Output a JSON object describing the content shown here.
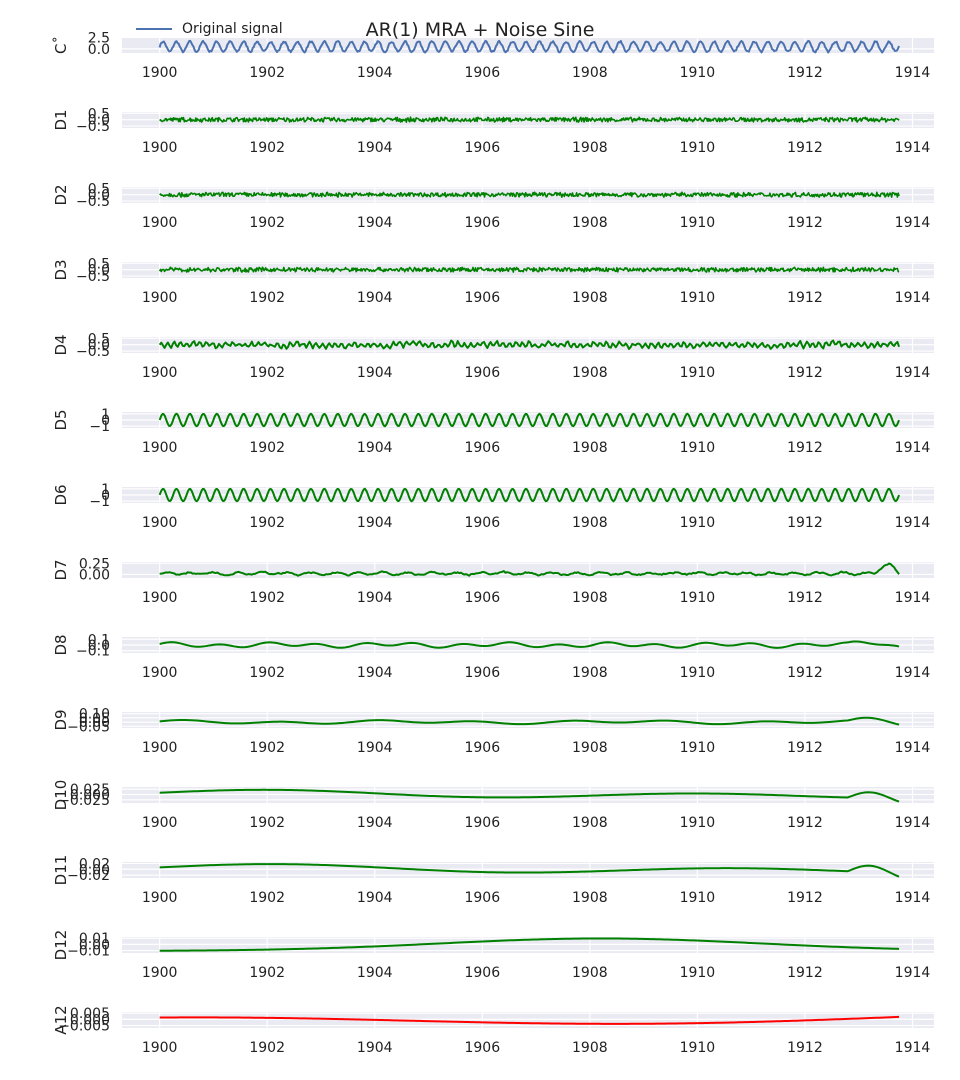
{
  "chart_data": {
    "type": "line",
    "title": "AR(1) MRA + Noise Sine",
    "legend": {
      "entries": [
        "Original signal"
      ],
      "placement": "top-left"
    },
    "x_range": [
      1899.3,
      1914.4
    ],
    "x_ticks": [
      "1900",
      "1902",
      "1904",
      "1906",
      "1908",
      "1910",
      "1912",
      "1914"
    ],
    "grid": true,
    "colors": {
      "original": "#4c72b0",
      "detail": "#008000",
      "approx": "#ff0000",
      "background": "#eaeaf2"
    },
    "panels": [
      {
        "ylabel": "C˚",
        "color": "#4c72b0",
        "ylim": [
          -0.9,
          2.6
        ],
        "yticks": [
          {
            "v": 2.5,
            "t": "2.5"
          },
          {
            "v": 0.0,
            "t": "0.0"
          }
        ],
        "signal": {
          "kind": "sine",
          "amp": 1.1,
          "period": 0.25,
          "offset": 0.5,
          "noise": 0.2
        }
      },
      {
        "ylabel": "D1",
        "color": "#008000",
        "ylim": [
          -0.65,
          0.6
        ],
        "yticks": [
          {
            "v": 0.5,
            "t": "0.5"
          },
          {
            "v": 0.0,
            "t": "0.0"
          },
          {
            "v": -0.5,
            "t": "−0.5"
          }
        ],
        "signal": {
          "kind": "noise",
          "amp": 0.2
        }
      },
      {
        "ylabel": "D2",
        "color": "#008000",
        "ylim": [
          -0.65,
          0.6
        ],
        "yticks": [
          {
            "v": 0.5,
            "t": "0.5"
          },
          {
            "v": 0.0,
            "t": "0.0"
          },
          {
            "v": -0.5,
            "t": "−0.5"
          }
        ],
        "signal": {
          "kind": "noise",
          "amp": 0.2
        }
      },
      {
        "ylabel": "D3",
        "color": "#008000",
        "ylim": [
          -0.65,
          0.6
        ],
        "yticks": [
          {
            "v": 0.5,
            "t": "0.5"
          },
          {
            "v": 0.0,
            "t": "0.0"
          },
          {
            "v": -0.5,
            "t": "−0.5"
          }
        ],
        "signal": {
          "kind": "noise",
          "amp": 0.2
        }
      },
      {
        "ylabel": "D4",
        "color": "#008000",
        "ylim": [
          -0.65,
          0.6
        ],
        "yticks": [
          {
            "v": 0.5,
            "t": "0.5"
          },
          {
            "v": 0.0,
            "t": "0.0"
          },
          {
            "v": -0.5,
            "t": "−0.5"
          }
        ],
        "signal": {
          "kind": "wavy",
          "amp": 0.22,
          "period": 0.12
        }
      },
      {
        "ylabel": "D5",
        "color": "#008000",
        "ylim": [
          -1.3,
          1.3
        ],
        "yticks": [
          {
            "v": 1,
            "t": "1"
          },
          {
            "v": 0,
            "t": "0"
          },
          {
            "v": -1,
            "t": "−1"
          }
        ],
        "signal": {
          "kind": "sine",
          "amp": 1.0,
          "period": 0.25,
          "offset": 0,
          "noise": 0.02
        }
      },
      {
        "ylabel": "D6",
        "color": "#008000",
        "ylim": [
          -1.3,
          1.3
        ],
        "yticks": [
          {
            "v": 1,
            "t": "1"
          },
          {
            "v": 0,
            "t": "0"
          },
          {
            "v": -1,
            "t": "−1"
          }
        ],
        "signal": {
          "kind": "sine",
          "amp": 1.0,
          "period": 0.25,
          "offset": 0,
          "noise": 0.02
        }
      },
      {
        "ylabel": "D7",
        "color": "#008000",
        "ylim": [
          -0.08,
          0.28
        ],
        "yticks": [
          {
            "v": 0.25,
            "t": "0.25"
          },
          {
            "v": 0.0,
            "t": "0.00"
          }
        ],
        "signal": {
          "kind": "wavy",
          "amp": 0.03,
          "period": 0.45,
          "base": 0.02
        }
      },
      {
        "ylabel": "D8",
        "color": "#008000",
        "ylim": [
          -0.14,
          0.14
        ],
        "yticks": [
          {
            "v": 0.1,
            "t": "0.1"
          },
          {
            "v": 0.0,
            "t": "0.0"
          },
          {
            "v": -0.1,
            "t": "−0.1"
          }
        ],
        "signal": {
          "kind": "smooth",
          "amp": 0.05,
          "period": 0.9
        }
      },
      {
        "ylabel": "D9",
        "color": "#008000",
        "ylim": [
          -0.07,
          0.12
        ],
        "yticks": [
          {
            "v": 0.1,
            "t": "0.10"
          },
          {
            "v": 0.05,
            "t": "0.05"
          },
          {
            "v": 0.0,
            "t": "0.00"
          },
          {
            "v": -0.05,
            "t": "−0.05"
          }
        ],
        "signal": {
          "kind": "smooth",
          "amp": 0.025,
          "period": 1.8
        }
      },
      {
        "ylabel": "D10",
        "color": "#008000",
        "ylim": [
          -0.04,
          0.035
        ],
        "yticks": [
          {
            "v": 0.025,
            "t": "0.025"
          },
          {
            "v": 0.0,
            "t": "0.000"
          },
          {
            "v": -0.025,
            "t": "−0.025"
          }
        ],
        "signal": {
          "kind": "smooth",
          "amp": 0.022,
          "period": 8.0
        }
      },
      {
        "ylabel": "D11",
        "color": "#008000",
        "ylim": [
          -0.03,
          0.025
        ],
        "yticks": [
          {
            "v": 0.02,
            "t": "0.02"
          },
          {
            "v": 0.0,
            "t": "0.00"
          },
          {
            "v": -0.02,
            "t": "−0.02"
          }
        ],
        "signal": {
          "kind": "smooth",
          "amp": 0.018,
          "period": 8.5
        }
      },
      {
        "ylabel": "D12",
        "color": "#008000",
        "ylim": [
          -0.014,
          0.012
        ],
        "yticks": [
          {
            "v": 0.01,
            "t": "0.01"
          },
          {
            "v": 0.0,
            "t": "0.00"
          },
          {
            "v": -0.01,
            "t": "−0.01"
          }
        ],
        "signal": {
          "kind": "hump",
          "amp": 0.012
        }
      },
      {
        "ylabel": "A12",
        "color": "#ff0000",
        "ylim": [
          -0.007,
          0.006
        ],
        "yticks": [
          {
            "v": 0.005,
            "t": "0.005"
          },
          {
            "v": 0.0,
            "t": "0.000"
          },
          {
            "v": -0.005,
            "t": "−0.005"
          }
        ],
        "signal": {
          "kind": "trend",
          "amp": 0.005
        }
      }
    ]
  }
}
